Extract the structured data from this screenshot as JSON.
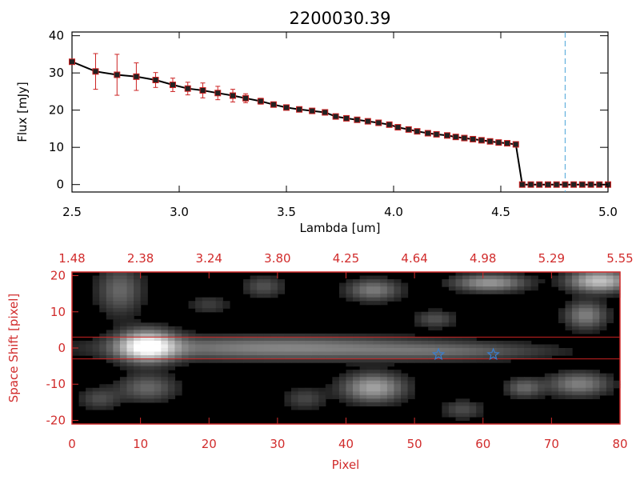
{
  "colors": {
    "axis_black": "#000000",
    "axis_red": "#d12c2c",
    "marker": "#222222",
    "marker_edge": "#cc2222",
    "errorbar": "#cc2222",
    "dashed_line": "#4aa3d8",
    "band_line": "#cc2222",
    "star": "#3a7fd0",
    "background": "#ffffff"
  },
  "chart_data": [
    {
      "type": "line",
      "title": "2200030.39",
      "xlabel": "Lambda [um]",
      "ylabel": "Flux [mJy]",
      "xlim": [
        2.5,
        5.0
      ],
      "ylim": [
        -2,
        41
      ],
      "xticks": [
        "2.5",
        "3.0",
        "3.5",
        "4.0",
        "4.5",
        "5.0"
      ],
      "yticks": [
        "0",
        "10",
        "20",
        "30",
        "40"
      ],
      "vline_x": 4.8,
      "series": [
        {
          "name": "flux",
          "x": [
            2.5,
            2.61,
            2.71,
            2.8,
            2.89,
            2.97,
            3.04,
            3.11,
            3.18,
            3.25,
            3.31,
            3.38,
            3.44,
            3.5,
            3.56,
            3.62,
            3.68,
            3.73,
            3.78,
            3.83,
            3.88,
            3.93,
            3.98,
            4.02,
            4.07,
            4.11,
            4.16,
            4.2,
            4.25,
            4.29,
            4.33,
            4.37,
            4.41,
            4.45,
            4.49,
            4.53,
            4.57,
            4.6,
            4.64,
            4.68,
            4.72,
            4.76,
            4.8,
            4.84,
            4.88,
            4.92,
            4.96,
            5.0
          ],
          "y": [
            33.0,
            30.4,
            29.5,
            29.0,
            28.1,
            26.8,
            25.8,
            25.3,
            24.6,
            23.9,
            23.2,
            22.4,
            21.5,
            20.7,
            20.2,
            19.8,
            19.4,
            18.3,
            17.8,
            17.4,
            17.0,
            16.6,
            16.1,
            15.4,
            14.8,
            14.3,
            13.8,
            13.5,
            13.2,
            12.8,
            12.5,
            12.2,
            11.9,
            11.6,
            11.3,
            11.1,
            10.8,
            0,
            0,
            0,
            0,
            0,
            0,
            0,
            0,
            0,
            0,
            0
          ],
          "err": [
            0,
            4.8,
            5.5,
            3.7,
            2.0,
            1.8,
            1.7,
            2.0,
            1.8,
            1.7,
            1.2,
            0.8,
            0.6,
            0.5,
            0.4,
            0.4,
            0.4,
            0.4,
            0.4,
            0.4,
            0.4,
            0.4,
            0.4,
            0.4,
            0.4,
            0.4,
            0.4,
            0.4,
            0.4,
            0.4,
            0.4,
            0.4,
            0.4,
            0.4,
            0.4,
            0.4,
            0.4,
            0,
            0,
            0,
            0,
            0,
            0,
            0,
            0,
            0,
            0,
            0
          ]
        }
      ]
    },
    {
      "type": "heatmap",
      "xlabel": "Pixel",
      "ylabel": "Space Shift [pixel]",
      "xlim": [
        0,
        80
      ],
      "ylim": [
        -21,
        21
      ],
      "xticks": [
        "0",
        "10",
        "20",
        "30",
        "40",
        "50",
        "60",
        "70",
        "80"
      ],
      "yticks": [
        "-20",
        "-10",
        "0",
        "10",
        "20"
      ],
      "top_axis_ticks": [
        "1.48",
        "2.38",
        "3.24",
        "3.80",
        "4.25",
        "4.64",
        "4.98",
        "5.29",
        "5.55"
      ],
      "band_lines_y": [
        3,
        -3
      ],
      "star_markers": [
        {
          "x": 53.5,
          "y": -1.8
        },
        {
          "x": 61.5,
          "y": -1.8
        }
      ],
      "blobs": [
        {
          "x": 11,
          "y": 0.5,
          "sx": 2.8,
          "sy": 2.8,
          "amp": 1.0
        },
        {
          "x": 30,
          "y": 0,
          "sx": 16,
          "sy": 2.2,
          "amp": 0.42
        },
        {
          "x": 56,
          "y": -1,
          "sx": 10,
          "sy": 1.6,
          "amp": 0.22
        },
        {
          "x": 7,
          "y": 16,
          "sx": 2.2,
          "sy": 4.5,
          "amp": 0.3
        },
        {
          "x": 11,
          "y": -11,
          "sx": 2.8,
          "sy": 2.5,
          "amp": 0.3
        },
        {
          "x": 44,
          "y": 16,
          "sx": 2.6,
          "sy": 2.0,
          "amp": 0.38
        },
        {
          "x": 44,
          "y": -11,
          "sx": 3.0,
          "sy": 2.6,
          "amp": 0.55
        },
        {
          "x": 28,
          "y": 17,
          "sx": 2.0,
          "sy": 2.0,
          "amp": 0.22
        },
        {
          "x": 61,
          "y": 18,
          "sx": 3.5,
          "sy": 1.6,
          "amp": 0.5
        },
        {
          "x": 77,
          "y": 18.5,
          "sx": 3.0,
          "sy": 2.0,
          "amp": 0.7
        },
        {
          "x": 75,
          "y": 9,
          "sx": 2.0,
          "sy": 2.5,
          "amp": 0.4
        },
        {
          "x": 74,
          "y": -10,
          "sx": 3.0,
          "sy": 2.2,
          "amp": 0.4
        },
        {
          "x": 66,
          "y": -11,
          "sx": 1.8,
          "sy": 1.8,
          "amp": 0.3
        },
        {
          "x": 53,
          "y": 8,
          "sx": 2.0,
          "sy": 1.6,
          "amp": 0.22
        },
        {
          "x": 4,
          "y": -14,
          "sx": 2.0,
          "sy": 2.0,
          "amp": 0.2
        },
        {
          "x": 34,
          "y": -14,
          "sx": 2.0,
          "sy": 2.0,
          "amp": 0.18
        },
        {
          "x": 57,
          "y": -17,
          "sx": 2.0,
          "sy": 1.8,
          "amp": 0.2
        },
        {
          "x": 20,
          "y": 12,
          "sx": 2.0,
          "sy": 1.8,
          "amp": 0.15
        }
      ]
    }
  ]
}
